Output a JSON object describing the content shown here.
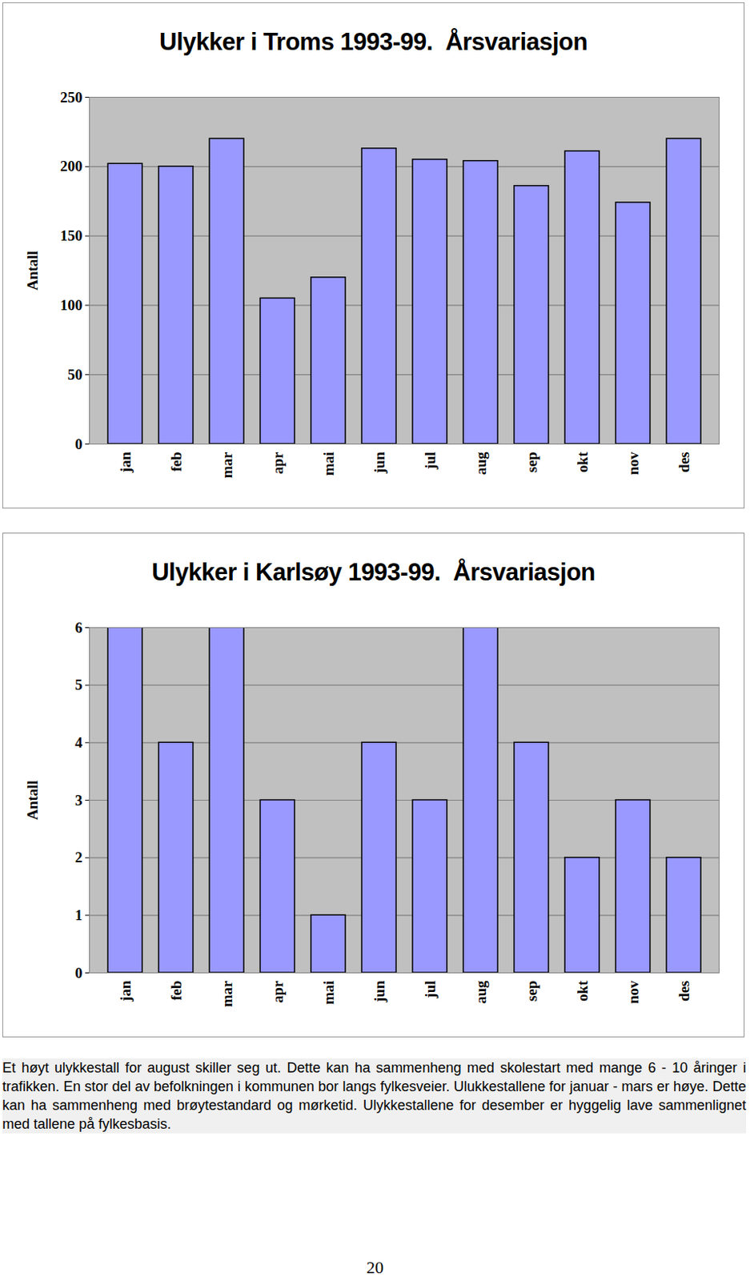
{
  "chart_data": [
    {
      "type": "bar",
      "title": "Ulykker i Troms 1993-99.  Årsvariasjon",
      "y_label": "Antall",
      "categories": [
        "jan",
        "feb",
        "mar",
        "apr",
        "mai",
        "jun",
        "jul",
        "aug",
        "sep",
        "okt",
        "nov",
        "des"
      ],
      "values": [
        202,
        200,
        220,
        105,
        120,
        213,
        205,
        204,
        186,
        211,
        174,
        220
      ],
      "color": "#9999ff",
      "ylim": [
        0,
        250
      ],
      "yticks": [
        0,
        50,
        100,
        150,
        200,
        250
      ],
      "grid": true
    },
    {
      "type": "bar",
      "title": "Ulykker i Karlsøy 1993-99.  Årsvariasjon",
      "y_label": "Antall",
      "categories": [
        "jan",
        "feb",
        "mar",
        "apr",
        "mai",
        "jun",
        "jul",
        "aug",
        "sep",
        "okt",
        "nov",
        "des"
      ],
      "values": [
        6,
        4,
        6,
        3,
        1,
        4,
        3,
        6,
        4,
        2,
        3,
        2
      ],
      "color": "#9999ff",
      "ylim": [
        0,
        6
      ],
      "yticks": [
        0,
        1,
        2,
        3,
        4,
        5,
        6
      ],
      "grid": true
    }
  ],
  "caption": "Et høyt ulykkestall for august skiller seg ut. Dette kan ha sammenheng med skolestart med mange 6 - 10 åringer i trafikken. En stor del av befolkningen i kommunen bor langs fylkesveier. Ulukkestallene for januar - mars er høye. Dette kan ha sammenheng med brøytestandard og mørketid. Ulykkestallene for desember er hyggelig lave sammenlignet med tallene på fylkesbasis.",
  "page_number": 20
}
